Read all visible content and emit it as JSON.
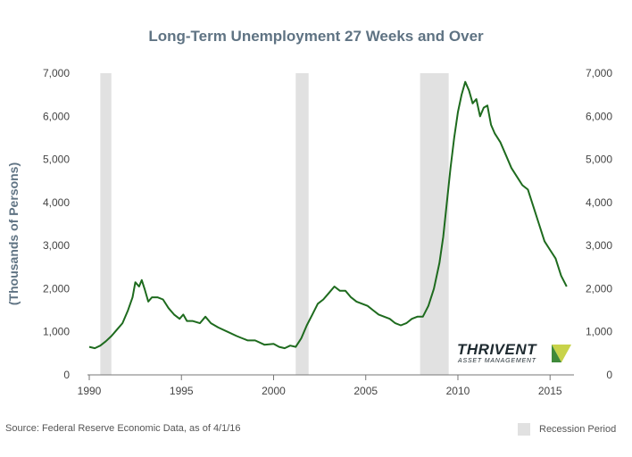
{
  "chart_data": {
    "type": "line",
    "title": "Long-Term Unemployment 27 Weeks and Over",
    "ylabel": "(Thousands of Persons)",
    "xlabel": "",
    "xlim": [
      1990,
      2016.2
    ],
    "ylim": [
      0,
      7000
    ],
    "x_ticks": [
      1990,
      1995,
      2000,
      2005,
      2010,
      2015
    ],
    "y_ticks": [
      0,
      1000,
      2000,
      3000,
      4000,
      5000,
      6000,
      7000
    ],
    "y_tick_labels": [
      "0",
      "1,000",
      "2,000",
      "3,000",
      "4,000",
      "5,000",
      "6,000",
      "7,000"
    ],
    "grid": false,
    "line_color": "#1e6b1e",
    "recession_color": "#e1e1e1",
    "recessions": [
      {
        "start": 1990.6,
        "end": 1991.2
      },
      {
        "start": 2001.2,
        "end": 2001.9
      },
      {
        "start": 2007.95,
        "end": 2009.5
      }
    ],
    "series": [
      {
        "x": [
          1990.0,
          1990.3,
          1990.6,
          1990.9,
          1991.2,
          1991.5,
          1991.8,
          1992.1,
          1992.35,
          1992.5,
          1992.7,
          1992.85,
          1993.0,
          1993.2,
          1993.4,
          1993.7,
          1994.0,
          1994.3,
          1994.6,
          1994.9,
          1995.1,
          1995.3,
          1995.6,
          1996.0,
          1996.3,
          1996.6,
          1997.0,
          1997.5,
          1998.0,
          1998.3,
          1998.6,
          1999.0,
          1999.5,
          2000.0,
          2000.3,
          2000.6,
          2000.9,
          2001.2,
          2001.5,
          2001.8,
          2002.1,
          2002.4,
          2002.7,
          2003.0,
          2003.3,
          2003.6,
          2003.9,
          2004.2,
          2004.5,
          2004.8,
          2005.1,
          2005.4,
          2005.7,
          2006.0,
          2006.3,
          2006.6,
          2006.9,
          2007.2,
          2007.5,
          2007.8,
          2008.1,
          2008.4,
          2008.7,
          2009.0,
          2009.2,
          2009.4,
          2009.6,
          2009.8,
          2010.0,
          2010.2,
          2010.4,
          2010.6,
          2010.8,
          2011.0,
          2011.2,
          2011.4,
          2011.6,
          2011.8,
          2012.0,
          2012.3,
          2012.6,
          2012.9,
          2013.2,
          2013.5,
          2013.8,
          2014.1,
          2014.4,
          2014.7,
          2015.0,
          2015.3,
          2015.6,
          2015.9
        ],
        "values": [
          650,
          620,
          680,
          780,
          900,
          1050,
          1200,
          1500,
          1800,
          2150,
          2050,
          2200,
          2000,
          1700,
          1800,
          1800,
          1750,
          1550,
          1400,
          1300,
          1400,
          1250,
          1250,
          1200,
          1350,
          1200,
          1100,
          1000,
          900,
          850,
          800,
          800,
          700,
          720,
          650,
          620,
          680,
          650,
          850,
          1150,
          1400,
          1650,
          1750,
          1900,
          2050,
          1950,
          1950,
          1800,
          1700,
          1650,
          1600,
          1500,
          1400,
          1350,
          1300,
          1200,
          1150,
          1200,
          1300,
          1350,
          1350,
          1600,
          2000,
          2600,
          3200,
          4000,
          4800,
          5500,
          6100,
          6500,
          6800,
          6600,
          6300,
          6400,
          6000,
          6200,
          6250,
          5800,
          5600,
          5400,
          5100,
          4800,
          4600,
          4400,
          4300,
          3900,
          3500,
          3100,
          2900,
          2700,
          2300,
          2050
        ]
      }
    ],
    "source": "Source: Federal Reserve Economic Data, as of 4/1/16",
    "legend_label": "Recession Period",
    "logo": {
      "name": "THRIVENT",
      "subtitle": "ASSET MANAGEMENT"
    }
  }
}
